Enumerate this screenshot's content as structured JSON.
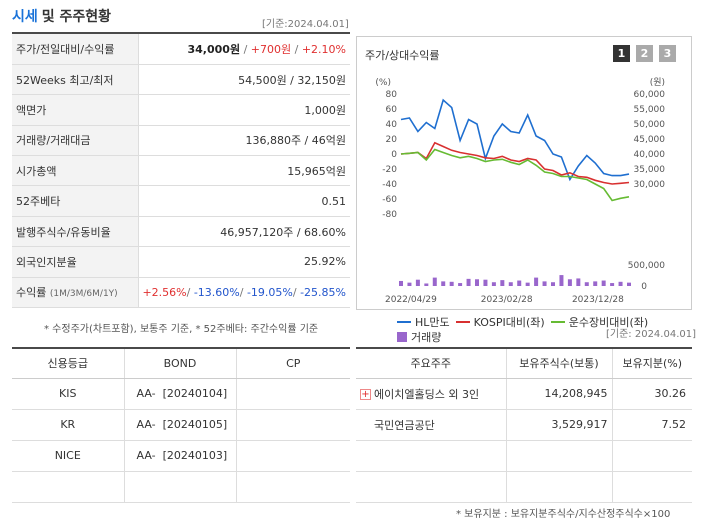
{
  "header": {
    "title_blue": "시세",
    "title_rest": "및 주주현황",
    "date": "[기준:2024.04.01]"
  },
  "quote": {
    "price_label": "주가/전일대비/수익률",
    "price": "34,000원",
    "change": "+700원",
    "change_pct": "+2.10%",
    "w52_label": "52Weeks 최고/최저",
    "w52_value": "54,500원 / 32,150원",
    "face_label": "액면가",
    "face_value": "1,000원",
    "volume_label": "거래량/거래대금",
    "volume_value": "136,880주 / 46억원",
    "mcap_label": "시가총액",
    "mcap_value": "15,965억원",
    "beta_label": "52주베타",
    "beta_value": "0.51",
    "shares_label": "발행주식수/유동비율",
    "shares_value": "46,957,120주 / 68.60%",
    "foreign_label": "외국인지분율",
    "foreign_value": "25.92%",
    "return_label": "수익률",
    "return_periods": "(1M/3M/6M/1Y)",
    "ret_1m": "+2.56%",
    "ret_3m": "-13.60%",
    "ret_6m": "-19.05%",
    "ret_1y": "-25.85%"
  },
  "note1": "* 수정주가(차트포함), 보통주 기준, * 52주베타: 주간수익률 기준",
  "chart_panel": {
    "title": "주가/상대수익률",
    "pages": [
      "1",
      "2",
      "3"
    ]
  },
  "chart_data": {
    "type": "line",
    "left_unit": "(%)",
    "right_unit": "(원)",
    "left_ticks": [
      "80",
      "60",
      "40",
      "20",
      "0",
      "-20",
      "-40",
      "-60",
      "-80"
    ],
    "right_ticks": [
      "60,000",
      "55,000",
      "50,000",
      "45,000",
      "40,000",
      "35,000",
      "30,000"
    ],
    "vol_ticks": [
      "500,000",
      "0"
    ],
    "x_labels": [
      "2022/04/29",
      "2023/02/28",
      "2023/12/28"
    ],
    "ylim_left": [
      -80,
      80
    ],
    "ylim_right": [
      30000,
      60000
    ],
    "vol_max": 500000,
    "series": [
      {
        "name": "HL만도",
        "color": "#1f6fd0",
        "values": [
          51500,
          52000,
          47500,
          50500,
          48500,
          58000,
          55500,
          44500,
          51500,
          50000,
          38500,
          46000,
          50000,
          47500,
          47000,
          53000,
          46000,
          44500,
          40000,
          39000,
          31500,
          36000,
          39500,
          37000,
          33500,
          32800,
          32800,
          33300
        ]
      },
      {
        "name": "KOSPI대비(좌)",
        "color": "#d83030",
        "values": [
          0,
          1,
          2,
          -6,
          15,
          10,
          5,
          2,
          0,
          -2,
          -5,
          -6,
          -3,
          -8,
          -10,
          -6,
          -8,
          -20,
          -22,
          -28,
          -25,
          -30,
          -31,
          -35,
          -38,
          -40,
          -39,
          -38
        ]
      },
      {
        "name": "운수장비대비(좌)",
        "color": "#66bb33",
        "values": [
          0,
          1,
          2,
          -8,
          6,
          2,
          -2,
          -5,
          -3,
          -6,
          -10,
          -8,
          -7,
          -11,
          -14,
          -8,
          -15,
          -24,
          -26,
          -30,
          -30,
          -32,
          -34,
          -40,
          -46,
          -62,
          -59,
          -57
        ]
      }
    ],
    "volume": {
      "name": "거래량",
      "color": "#9966cc",
      "values": [
        120000,
        80000,
        150000,
        60000,
        200000,
        110000,
        100000,
        70000,
        170000,
        160000,
        150000,
        90000,
        140000,
        90000,
        130000,
        80000,
        200000,
        110000,
        90000,
        260000,
        160000,
        180000,
        90000,
        110000,
        130000,
        70000,
        100000,
        80000
      ]
    }
  },
  "date2": "[기준: 2024.04.01]",
  "credit": {
    "headers": [
      "신용등급",
      "BOND",
      "CP"
    ],
    "rows": [
      {
        "agency": "KIS",
        "bond": "AA-  [20240104]",
        "cp": ""
      },
      {
        "agency": "KR",
        "bond": "AA-  [20240105]",
        "cp": ""
      },
      {
        "agency": "NICE",
        "bond": "AA-  [20240103]",
        "cp": ""
      }
    ]
  },
  "holders": {
    "headers": [
      "주요주주",
      "보유주식수(보통)",
      "보유지분(%)"
    ],
    "rows": [
      {
        "name": "에이치엘홀딩스 외 3인",
        "shares": "14,208,945",
        "pct": "30.26",
        "expand": "+"
      },
      {
        "name": "국민연금공단",
        "shares": "3,529,917",
        "pct": "7.52",
        "expand": ""
      }
    ]
  },
  "note2": "* 보유지분 : 보유지분주식수/지수산정주식수×100"
}
